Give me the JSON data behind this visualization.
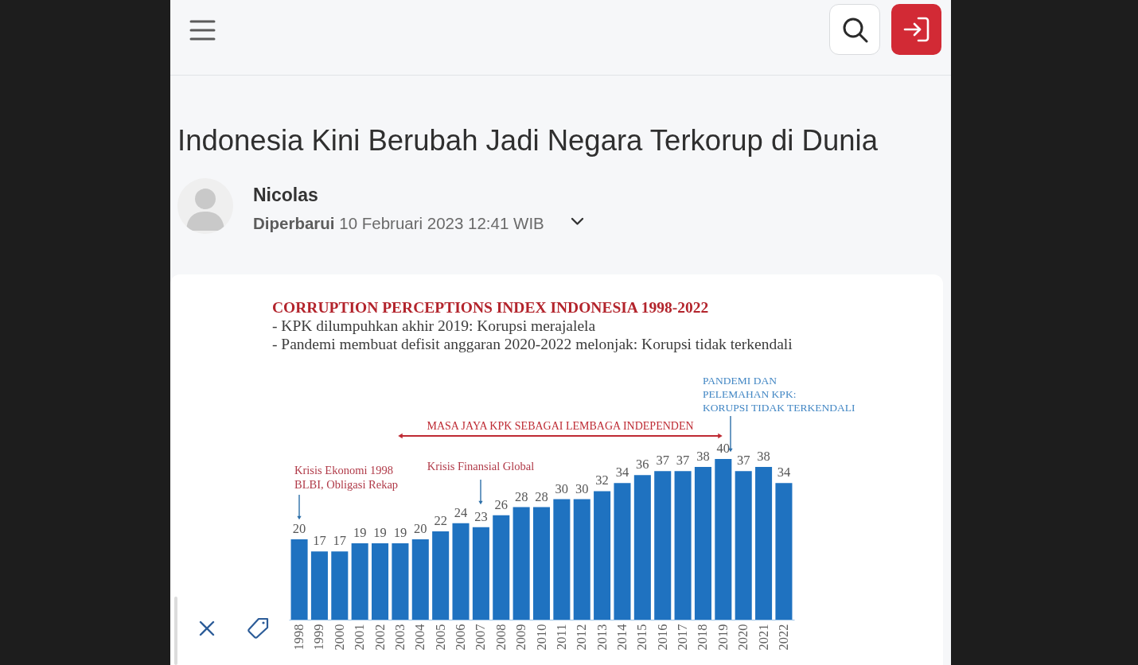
{
  "chart_data": {
    "type": "bar",
    "title": "CORRUPTION PERCEPTIONS INDEX INDONESIA 1998-2022",
    "subtitle": "- KPK dilumpuhkan akhir 2019: Korupsi merajalela\n- Pandemi membuat defisit anggaran 2020-2022 melonjak: Korupsi tidak terkendali",
    "categories": [
      "1998",
      "1999",
      "2000",
      "2001",
      "2002",
      "2003",
      "2004",
      "2005",
      "2006",
      "2007",
      "2008",
      "2009",
      "2010",
      "2011",
      "2012",
      "2013",
      "2014",
      "2015",
      "2016",
      "2017",
      "2018",
      "2019",
      "2020",
      "2021",
      "2022"
    ],
    "values": [
      20,
      17,
      17,
      19,
      19,
      19,
      20,
      22,
      24,
      23,
      26,
      28,
      28,
      30,
      30,
      32,
      34,
      36,
      37,
      37,
      38,
      40,
      37,
      38,
      34
    ],
    "color": "#1f72c0",
    "data_labels": true,
    "annotations": [
      "Indonesia Kini Berubah Jadi Negara Terkorup di Dunia",
      "Nicolas",
      "Diperbarui 10 Februari 2023 12:41 WIB",
      "MASA JAYA KPK SEBAGAI LEMBAGA INDEPENDEN",
      "Krisis Ekonomi 1998\nBLBI, Obligasi Rekap",
      "Krisis Finansial Global",
      "PANDEMI DAN\nPELEMAHAN KPK:\nKORUPSI TIDAK TERKENDALI"
    ]
  }
}
